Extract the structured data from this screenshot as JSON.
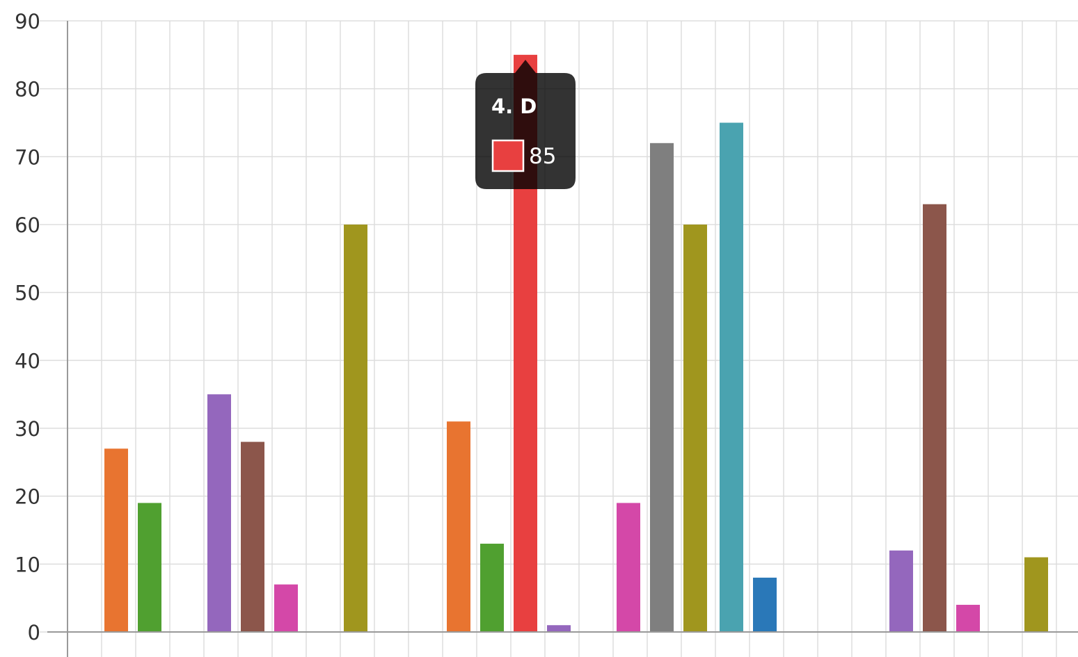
{
  "chart_data": {
    "type": "bar",
    "ylim": [
      0,
      90
    ],
    "yticks": [
      0,
      10,
      20,
      30,
      40,
      50,
      60,
      70,
      80,
      90
    ],
    "grid": true,
    "bars": [
      {
        "value": 27,
        "color": "#e87430"
      },
      {
        "value": 19,
        "color": "#50a030"
      },
      {
        "value": 35,
        "color": "#9467bd"
      },
      {
        "value": 28,
        "color": "#8c564b"
      },
      {
        "value": 7,
        "color": "#d448a8"
      },
      {
        "value": 60,
        "color": "#a0961e"
      },
      {
        "value": 31,
        "color": "#e87430"
      },
      {
        "value": 13,
        "color": "#50a030"
      },
      {
        "value": 85,
        "color": "#e84040"
      },
      {
        "value": 1,
        "color": "#9467bd"
      },
      {
        "value": 19,
        "color": "#d448a8"
      },
      {
        "value": 72,
        "color": "#7f7f7f"
      },
      {
        "value": 60,
        "color": "#a0961e"
      },
      {
        "value": 75,
        "color": "#4aa3b0"
      },
      {
        "value": 8,
        "color": "#2a78b8"
      },
      {
        "value": 12,
        "color": "#9467bd"
      },
      {
        "value": 63,
        "color": "#8c564b"
      },
      {
        "value": 4,
        "color": "#d448a8"
      },
      {
        "value": 11,
        "color": "#a0961e"
      }
    ],
    "tooltip": {
      "title": "4. D",
      "value": "85",
      "color": "#e84040",
      "bar_index": 8
    }
  }
}
